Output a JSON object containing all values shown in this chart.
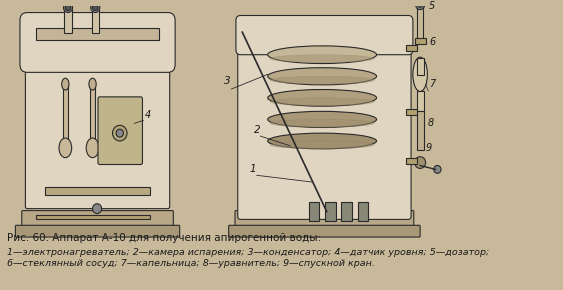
{
  "background_color": "#c8b99a",
  "title_line1": "Рис. 60. Аппарат А-10 для получения апирогенной воды:",
  "title_line2": "1—электронагреватель; 2—камера испарения; 3—конденсатор; 4—датчик уровня; 5—дозатор;",
  "title_line3": "6—стеклянный сосуд; 7—капельница; 8—уравнитель; 9—спускной кран.",
  "fig_width": 5.63,
  "fig_height": 2.9,
  "dpi": 100,
  "line_color": "#2a2a2a",
  "fill_color": "#d4c9b0",
  "apparatus_fill": "#e0d5c0",
  "dark_fill": "#5a5a5a",
  "text_color": "#1a1a1a",
  "title_fontsize": 7.5,
  "label_fontsize": 6.8,
  "italic_fontsize": 7.0
}
